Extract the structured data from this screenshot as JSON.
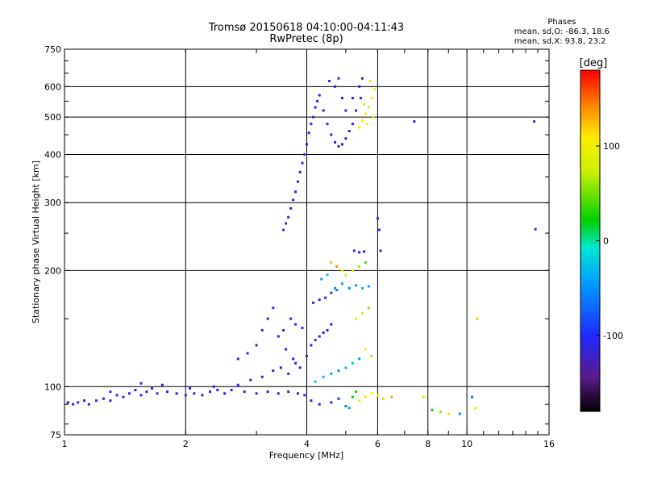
{
  "chart_data": {
    "type": "scatter",
    "title": "Tromsø 20150618 04:10:00-04:11:43",
    "subtitle": "RwPretec (8p)",
    "xlabel": "Frequency [MHz]",
    "ylabel": "Stationary phase Virtual Height [km]",
    "x_scale": "log",
    "y_scale": "log",
    "xlim": [
      1,
      16
    ],
    "ylim": [
      75,
      750
    ],
    "x_ticks": [
      1,
      2,
      4,
      6,
      8,
      10,
      16
    ],
    "x_tick_labels": [
      "1",
      "2",
      "4",
      "6",
      "8",
      "10",
      "16"
    ],
    "y_ticks": [
      75,
      100,
      200,
      300,
      400,
      500,
      600,
      750
    ],
    "y_tick_labels": [
      "75",
      "100",
      "200",
      "300",
      "400",
      "500",
      "600",
      "750"
    ],
    "grid": true,
    "colorbar": {
      "label": "[deg]",
      "range": [
        -180,
        180
      ],
      "ticks": [
        100,
        0,
        -100
      ],
      "tick_labels": [
        "100",
        "0",
        "-100"
      ]
    },
    "stats": {
      "header": "Phases",
      "line_o": "mean, sd,O: -86.3, 18.6",
      "line_x": "mean, sd,X:  93.8, 23.2"
    },
    "series": [
      {
        "points": [
          [
            1.02,
            91,
            -115
          ],
          [
            1.05,
            90,
            -110
          ],
          [
            1.08,
            91,
            -105
          ],
          [
            1.12,
            92,
            -112
          ],
          [
            1.15,
            90,
            -108
          ],
          [
            1.2,
            92,
            -110
          ],
          [
            1.25,
            93,
            -115
          ],
          [
            1.3,
            92,
            -100
          ],
          [
            1.35,
            95,
            -110
          ],
          [
            1.4,
            94,
            -115
          ],
          [
            1.45,
            96,
            -105
          ],
          [
            1.5,
            98,
            -120
          ],
          [
            1.55,
            95,
            -110
          ],
          [
            1.6,
            97,
            -112
          ],
          [
            1.65,
            99,
            -108
          ],
          [
            1.7,
            96,
            -115
          ],
          [
            1.8,
            97,
            -110
          ],
          [
            1.9,
            96,
            -105
          ],
          [
            2.0,
            95,
            -112
          ],
          [
            2.1,
            96,
            -110
          ],
          [
            2.2,
            95,
            -108
          ],
          [
            2.3,
            97,
            -115
          ],
          [
            2.4,
            98,
            -110
          ],
          [
            2.5,
            96,
            -105
          ],
          [
            2.6,
            98,
            -112
          ],
          [
            2.8,
            97,
            -110
          ],
          [
            3.0,
            96,
            -108
          ],
          [
            3.2,
            97,
            -115
          ],
          [
            3.4,
            96,
            -110
          ],
          [
            3.6,
            97,
            -105
          ],
          [
            3.8,
            96,
            -112
          ],
          [
            3.95,
            95,
            -110
          ],
          [
            1.3,
            97,
            -95
          ],
          [
            1.55,
            102,
            -105
          ],
          [
            1.75,
            101,
            -110
          ],
          [
            2.05,
            99,
            -100
          ],
          [
            2.35,
            100,
            -110
          ],
          [
            2.7,
            101,
            -105
          ],
          [
            2.9,
            104,
            -112
          ],
          [
            3.1,
            106,
            -110
          ],
          [
            3.3,
            110,
            -120
          ],
          [
            3.45,
            112,
            -115
          ],
          [
            3.6,
            108,
            -110
          ],
          [
            3.75,
            115,
            -112
          ]
        ]
      },
      {
        "points": [
          [
            2.7,
            118,
            -110
          ],
          [
            2.85,
            122,
            -115
          ],
          [
            3.0,
            128,
            -110
          ],
          [
            3.1,
            140,
            -105
          ],
          [
            3.2,
            150,
            -115
          ],
          [
            3.3,
            160,
            -112
          ],
          [
            3.4,
            135,
            -110
          ],
          [
            3.55,
            125,
            -108
          ],
          [
            3.7,
            118,
            -105
          ],
          [
            3.85,
            112,
            -110
          ],
          [
            3.65,
            150,
            -115
          ],
          [
            3.5,
            140,
            -120
          ],
          [
            3.75,
            145,
            -110
          ],
          [
            3.9,
            142,
            -108
          ]
        ]
      },
      {
        "points": [
          [
            3.5,
            255,
            -110
          ],
          [
            3.55,
            265,
            -108
          ],
          [
            3.6,
            275,
            -112
          ],
          [
            3.65,
            290,
            -110
          ],
          [
            3.7,
            305,
            -105
          ],
          [
            3.75,
            320,
            -110
          ],
          [
            3.8,
            340,
            -115
          ],
          [
            3.85,
            360,
            -110
          ],
          [
            3.9,
            380,
            -108
          ],
          [
            3.95,
            400,
            -105
          ],
          [
            4.0,
            425,
            -110
          ],
          [
            4.05,
            455,
            -112
          ],
          [
            4.1,
            480,
            -110
          ],
          [
            4.15,
            500,
            -108
          ],
          [
            4.2,
            530,
            -115
          ],
          [
            4.25,
            550,
            -110
          ],
          [
            4.3,
            570,
            -105
          ],
          [
            4.4,
            520,
            -110
          ],
          [
            4.5,
            480,
            -115
          ],
          [
            4.6,
            450,
            -112
          ],
          [
            4.7,
            430,
            -110
          ],
          [
            4.8,
            420,
            -108
          ],
          [
            4.9,
            425,
            -105
          ],
          [
            5.0,
            440,
            -110
          ],
          [
            5.1,
            460,
            -112
          ],
          [
            5.2,
            480,
            -110
          ],
          [
            4.7,
            600,
            -108
          ],
          [
            4.8,
            630,
            -110
          ],
          [
            4.55,
            620,
            -112
          ],
          [
            4.9,
            560,
            -105
          ],
          [
            5.0,
            520,
            -100
          ],
          [
            5.2,
            560,
            -105
          ],
          [
            5.4,
            600,
            -110
          ],
          [
            5.5,
            630,
            -108
          ],
          [
            5.3,
            520,
            -100
          ],
          [
            5.45,
            560,
            -95
          ]
        ]
      },
      {
        "points": [
          [
            5.4,
            470,
            95
          ],
          [
            5.5,
            490,
            100
          ],
          [
            5.6,
            510,
            105
          ],
          [
            5.7,
            530,
            90
          ],
          [
            5.8,
            560,
            110
          ],
          [
            5.9,
            590,
            100
          ],
          [
            5.75,
            620,
            95
          ],
          [
            5.65,
            480,
            105
          ],
          [
            5.85,
            500,
            100
          ],
          [
            5.55,
            540,
            90
          ]
        ]
      },
      {
        "points": [
          [
            4.0,
            120,
            -110
          ],
          [
            4.1,
            128,
            -108
          ],
          [
            4.2,
            132,
            -112
          ],
          [
            4.3,
            135,
            -110
          ],
          [
            4.4,
            138,
            -105
          ],
          [
            4.5,
            140,
            -110
          ],
          [
            4.6,
            145,
            -112
          ],
          [
            4.15,
            165,
            -110
          ],
          [
            4.3,
            168,
            -108
          ],
          [
            4.45,
            170,
            -105
          ],
          [
            4.6,
            175,
            -110
          ],
          [
            4.75,
            178,
            -60
          ],
          [
            4.35,
            190,
            -40
          ],
          [
            4.5,
            195,
            -30
          ],
          [
            4.7,
            180,
            -50
          ],
          [
            4.9,
            185,
            -40
          ],
          [
            5.1,
            180,
            -50
          ],
          [
            5.3,
            183,
            -45
          ],
          [
            5.5,
            180,
            -35
          ],
          [
            5.7,
            182,
            -40
          ],
          [
            4.6,
            210,
            130
          ],
          [
            4.75,
            205,
            140
          ],
          [
            4.9,
            200,
            110
          ],
          [
            5.0,
            195,
            100
          ],
          [
            5.2,
            200,
            90
          ],
          [
            5.4,
            205,
            60
          ],
          [
            5.6,
            210,
            40
          ],
          [
            5.25,
            225,
            -100
          ],
          [
            5.4,
            223,
            -105
          ],
          [
            5.55,
            224,
            -110
          ],
          [
            5.3,
            150,
            90
          ],
          [
            5.5,
            155,
            80
          ],
          [
            5.7,
            160,
            60
          ],
          [
            5.8,
            120,
            120
          ],
          [
            5.6,
            125,
            110
          ],
          [
            5.4,
            118,
            -40
          ],
          [
            5.2,
            115,
            -20
          ],
          [
            5.0,
            112,
            -30
          ],
          [
            4.8,
            110,
            -60
          ],
          [
            4.6,
            108,
            -40
          ],
          [
            4.4,
            106,
            -30
          ],
          [
            4.2,
            103,
            -20
          ]
        ]
      },
      {
        "points": [
          [
            4.1,
            92,
            -110
          ],
          [
            4.3,
            90,
            -105
          ],
          [
            4.6,
            91,
            -100
          ],
          [
            4.8,
            93,
            -90
          ],
          [
            5.0,
            89,
            -60
          ],
          [
            5.2,
            94,
            20
          ],
          [
            5.4,
            92,
            90
          ],
          [
            5.6,
            94,
            100
          ],
          [
            5.8,
            96,
            110
          ],
          [
            6.0,
            95,
            100
          ],
          [
            6.2,
            93,
            120
          ],
          [
            6.5,
            94,
            130
          ],
          [
            5.3,
            97,
            30
          ],
          [
            5.1,
            88,
            -40
          ]
        ]
      },
      {
        "points": [
          [
            6.0,
            273,
            -110
          ],
          [
            6.05,
            255,
            -105
          ],
          [
            6.1,
            225,
            -100
          ],
          [
            7.4,
            487,
            -110
          ],
          [
            14.7,
            487,
            -105
          ],
          [
            14.8,
            256,
            -110
          ],
          [
            7.8,
            94,
            80
          ],
          [
            8.2,
            87,
            20
          ],
          [
            8.6,
            86,
            60
          ],
          [
            9.0,
            85,
            90
          ],
          [
            9.6,
            85,
            -40
          ],
          [
            10.3,
            94,
            -60
          ],
          [
            10.6,
            150,
            120
          ],
          [
            10.5,
            88,
            80
          ]
        ]
      }
    ]
  }
}
